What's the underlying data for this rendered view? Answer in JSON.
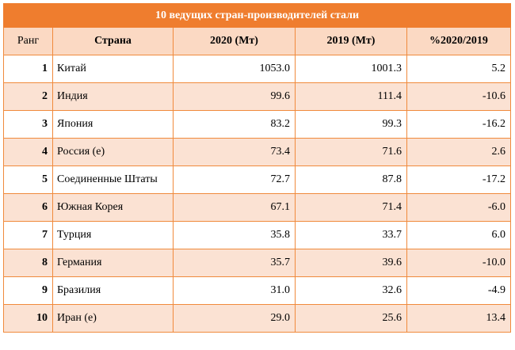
{
  "table": {
    "title": "10 ведущих стран-производителей стали",
    "headers": {
      "rank": "Ранг",
      "country": "Страна",
      "y2020": "2020 (Мт)",
      "y2019": "2019 (Мт)",
      "change": "%2020/2019"
    },
    "rows": [
      {
        "rank": "1",
        "country": "Китай",
        "y2020": "1053.0",
        "y2019": "1001.3",
        "change": "5.2"
      },
      {
        "rank": "2",
        "country": "Индия",
        "y2020": "99.6",
        "y2019": "111.4",
        "change": "-10.6"
      },
      {
        "rank": "3",
        "country": "Япония",
        "y2020": "83.2",
        "y2019": "99.3",
        "change": "-16.2"
      },
      {
        "rank": "4",
        "country": "Россия (е)",
        "y2020": "73.4",
        "y2019": "71.6",
        "change": "2.6"
      },
      {
        "rank": "5",
        "country": "Соединенные Штаты",
        "y2020": "72.7",
        "y2019": "87.8",
        "change": "-17.2"
      },
      {
        "rank": "6",
        "country": "Южная Корея",
        "y2020": "67.1",
        "y2019": "71.4",
        "change": "-6.0"
      },
      {
        "rank": "7",
        "country": "Турция",
        "y2020": "35.8",
        "y2019": "33.7",
        "change": "6.0"
      },
      {
        "rank": "8",
        "country": "Германия",
        "y2020": "35.7",
        "y2019": "39.6",
        "change": "-10.0"
      },
      {
        "rank": "9",
        "country": "Бразилия",
        "y2020": "31.0",
        "y2019": "32.6",
        "change": "-4.9"
      },
      {
        "rank": "10",
        "country": "Иран (е)",
        "y2020": "29.0",
        "y2019": "25.6",
        "change": "13.4"
      }
    ]
  },
  "colors": {
    "title_bg": "#ef7d2e",
    "header_bg": "#fbd9c3",
    "stripe_bg": "#fbe2d3",
    "border": "#f08a3c"
  }
}
